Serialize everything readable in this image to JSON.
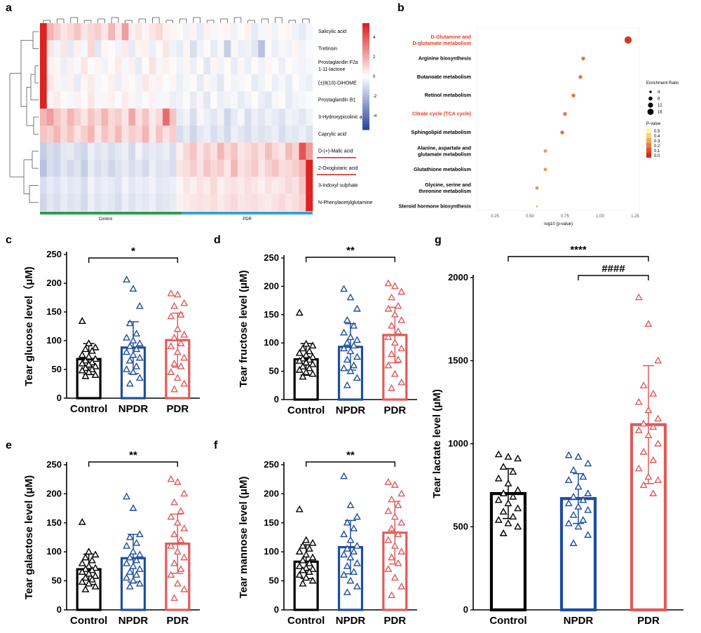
{
  "panel_labels": [
    "a",
    "b",
    "c",
    "d",
    "e",
    "f",
    "g"
  ],
  "colors": {
    "control": "#000000",
    "npdr": "#1f4e9c",
    "pdr": "#e05a5a",
    "hm_high": "#dd2222",
    "hm_low": "#2a48a0",
    "bar_control_group": "#2e9e4a",
    "bar_pdr_group": "#3aa0d8"
  },
  "heatmap": {
    "rows": [
      "Salicylic acid",
      "Tretinoin",
      "Prostaglandin F2a\n1-11-lactone",
      "(±)9(10)-DiHOME",
      "Prostaglandin B1",
      "3-Hydroxypicolinic acid",
      "Caprylic acid",
      "D-(+)-Malic acid",
      "2-Oxoglutaric acid",
      "3-Indoxyl sulphate",
      "N-Phenylacetylglutamine"
    ],
    "underlined_rows": [
      7,
      8
    ],
    "group_labels": [
      "Control",
      "PDR"
    ],
    "scale_ticks": [
      "4",
      "2",
      "0",
      "-2",
      "-4"
    ],
    "n_cols": 40
  },
  "chart_data": [
    {
      "type": "heatmap",
      "panel": "a",
      "rows": [
        "Salicylic acid",
        "Tretinoin",
        "Prostaglandin F2a 1-11-lactone",
        "(±)9(10)-DiHOME",
        "Prostaglandin B1",
        "3-Hydroxypicolinic acid",
        "Caprylic acid",
        "D-(+)-Malic acid",
        "2-Oxoglutaric acid",
        "3-Indoxyl sulphate",
        "N-Phenylacetylglutamine"
      ],
      "groups": [
        "Control",
        "PDR"
      ],
      "color_range": [
        -4,
        4
      ],
      "values": [
        [
          5,
          1.5,
          1,
          0.5,
          0.8,
          1.2,
          0.5,
          0.8,
          1,
          0.5,
          1.5,
          0.5,
          2,
          0.3,
          0.5,
          0.2,
          0.5,
          0.8,
          0.3,
          0.2,
          0.1,
          -0.3,
          0.2,
          -0.5,
          0.3,
          -0.2,
          0.1,
          0.2,
          -0.3,
          0.1,
          0.3,
          -0.5,
          -0.2,
          0.2,
          -0.3,
          0.1,
          0.2,
          -0.3,
          -0.5,
          -0.2
        ],
        [
          4.5,
          0.5,
          -0.3,
          0.5,
          -0.5,
          0.3,
          -0.2,
          0.8,
          -0.6,
          0.2,
          0.1,
          -0.3,
          0.4,
          -0.5,
          0.2,
          0.3,
          -0.4,
          0.1,
          0.5,
          -0.3,
          -0.5,
          0.2,
          -0.8,
          -0.3,
          0.1,
          -0.5,
          -0.2,
          -1.2,
          0.2,
          -0.4,
          -0.3,
          -0.6,
          -1.5,
          0.1,
          -0.4,
          -0.2,
          -0.3,
          0.2,
          -0.3,
          -0.1
        ],
        [
          4.5,
          0.3,
          0.2,
          -0.4,
          0.3,
          -0.2,
          0.5,
          -0.1,
          0.2,
          -0.3,
          0.1,
          0.4,
          -0.2,
          0.3,
          -0.5,
          0.1,
          0.6,
          -0.2,
          0.3,
          0.1,
          -0.3,
          0.2,
          -0.4,
          0.1,
          -0.6,
          0.2,
          -0.3,
          0.1,
          -0.5,
          0.2,
          -0.4,
          0.1,
          -0.3,
          0.2,
          -0.1,
          -0.4,
          0.1,
          -0.2,
          -0.3,
          -0.2
        ],
        [
          5,
          0.5,
          0.2,
          -0.3,
          0.3,
          -0.5,
          0.2,
          0.4,
          -0.2,
          0.1,
          0.3,
          -0.4,
          0.2,
          0.1,
          -0.3,
          0.5,
          0.2,
          0.3,
          -0.1,
          0.2,
          -0.4,
          -0.2,
          0.1,
          -0.5,
          0.2,
          -0.3,
          -0.6,
          0.1,
          -0.3,
          -0.2,
          0.1,
          -0.5,
          -0.3,
          0.1,
          -0.4,
          -0.2,
          -0.5,
          0.1,
          -0.3,
          -0.4
        ],
        [
          4.8,
          0.2,
          0.4,
          0.1,
          -0.2,
          0.3,
          0.1,
          0.5,
          -0.2,
          0.2,
          0.3,
          -0.1,
          0.4,
          0.2,
          -0.3,
          0.1,
          0.3,
          -0.2,
          0.2,
          -0.4,
          -0.3,
          0.1,
          -0.5,
          -0.2,
          -0.6,
          0.1,
          -0.4,
          -0.3,
          -0.2,
          -0.5,
          -0.3,
          0.1,
          -0.4,
          -0.6,
          -0.2,
          0.1,
          -0.5,
          -0.3,
          -0.2,
          -0.1
        ],
        [
          1.5,
          2,
          1.2,
          0.8,
          1.5,
          1,
          0.5,
          1.2,
          0.8,
          1.5,
          0.8,
          1,
          0.5,
          1.8,
          0.6,
          1.2,
          0.4,
          0.8,
          3,
          1.2,
          -0.5,
          -0.3,
          -0.8,
          0.2,
          -0.4,
          -0.6,
          -0.3,
          -1,
          -0.5,
          -0.2,
          -0.8,
          -0.4,
          -0.6,
          -0.3,
          -0.5,
          -0.7,
          -0.3,
          -0.4,
          -0.6,
          -0.3
        ],
        [
          1.2,
          1,
          1.5,
          0.8,
          1.2,
          0.6,
          1,
          1.5,
          0.5,
          1.2,
          0.8,
          1.4,
          0.6,
          1,
          0.8,
          1.5,
          0.4,
          1.2,
          0.6,
          1,
          -0.8,
          -0.5,
          -1,
          -0.6,
          -0.4,
          -0.8,
          -0.5,
          -0.9,
          -0.4,
          -0.6,
          -0.8,
          -0.5,
          -0.7,
          -0.6,
          -0.4,
          -0.8,
          -0.5,
          -0.6,
          -0.4,
          -0.7
        ],
        [
          -1.2,
          -0.8,
          -1,
          -0.6,
          -0.5,
          -0.8,
          -1,
          -0.4,
          -0.7,
          -0.5,
          -0.8,
          -0.6,
          -0.4,
          -0.9,
          -0.3,
          -0.7,
          -0.5,
          -0.6,
          -0.4,
          -0.8,
          0.3,
          0.8,
          1.2,
          0.5,
          1,
          0.6,
          1.5,
          0.8,
          1.2,
          0.5,
          0.7,
          1,
          0.6,
          1.3,
          0.8,
          0.5,
          1.4,
          0.9,
          3.5,
          2
        ],
        [
          -1.5,
          -0.8,
          -1,
          -0.6,
          -0.9,
          -0.7,
          -1.2,
          -0.5,
          -0.8,
          -0.6,
          -1,
          -0.7,
          -0.5,
          -0.8,
          -0.6,
          -0.9,
          -0.4,
          -0.7,
          -0.6,
          -0.8,
          0.5,
          0.7,
          1,
          0.6,
          1.2,
          0.8,
          1,
          0.5,
          1.5,
          0.6,
          0.8,
          1.1,
          0.5,
          0.9,
          1.2,
          0.7,
          0.8,
          1,
          1.5,
          5
        ],
        [
          -0.8,
          -0.5,
          -0.7,
          -0.4,
          -0.6,
          -0.5,
          -0.8,
          -0.3,
          -0.6,
          -0.4,
          -0.5,
          -0.7,
          -0.3,
          -0.6,
          -0.4,
          -0.5,
          -0.3,
          -0.6,
          -0.5,
          -0.4,
          0.2,
          0.5,
          0.3,
          0.6,
          0.4,
          0.8,
          0.3,
          0.5,
          0.6,
          0.4,
          0.7,
          0.5,
          0.3,
          0.6,
          0.4,
          0.5,
          0.8,
          0.6,
          1.2,
          5
        ],
        [
          -1,
          -0.6,
          -0.8,
          -0.5,
          -0.7,
          -0.6,
          -0.9,
          -0.4,
          -0.7,
          -0.5,
          -0.6,
          -0.8,
          -0.4,
          -0.7,
          -0.5,
          -0.6,
          -0.4,
          -0.7,
          -0.6,
          -0.5,
          0.3,
          0.4,
          0.5,
          0.6,
          0.5,
          0.7,
          0.4,
          0.6,
          0.8,
          0.5,
          0.6,
          0.7,
          0.5,
          0.4,
          0.6,
          0.8,
          0.5,
          0.7,
          1,
          5
        ]
      ]
    },
    {
      "type": "scatter",
      "panel": "b",
      "categories": [
        "D-Glutamine and\nD-glutamate metabolism",
        "Arginine biosynthesis",
        "Butanoate metabolism",
        "Retinol metabolism",
        "Citrate cycle (TCA cycle)",
        "Sphingolipid metabolism",
        "Alanine, aspartate and\nglutamate metabolism",
        "Glutathione metabolism",
        "Glycine, serine and\nthreonine metabolism",
        "Steroid hormone biosynthesis"
      ],
      "highlighted": [
        0,
        4
      ],
      "neg_log10_p": [
        1.2,
        0.88,
        0.86,
        0.81,
        0.75,
        0.73,
        0.61,
        0.61,
        0.55,
        0.55
      ],
      "enrichment_ratio": [
        16,
        5,
        5,
        5,
        5,
        5,
        4,
        4,
        4,
        0
      ],
      "xlabel": "-log10 (p-value)",
      "xticks": [
        "0.25",
        "0.50",
        "0.75",
        "1.00",
        "1.25"
      ],
      "xlim": [
        0.12,
        1.28
      ],
      "size_legend_title": "Enrichment Ratio",
      "size_legend": [
        "4",
        "8",
        "12",
        "16"
      ],
      "color_legend_title": "P-value",
      "color_legend": [
        "0.5",
        "0.4",
        "0.3",
        "0.2",
        "0.1",
        "0.0"
      ]
    },
    {
      "type": "bar",
      "panel": "c",
      "categories": [
        "Control",
        "NPDR",
        "PDR"
      ],
      "means": [
        68,
        88,
        101
      ],
      "sd": [
        27,
        45,
        47
      ],
      "points": [
        [
          134,
          95,
          88,
          85,
          82,
          75,
          72,
          68,
          65,
          62,
          60,
          58,
          55,
          52,
          50,
          48,
          45,
          40,
          38
        ],
        [
          206,
          190,
          160,
          130,
          112,
          105,
          100,
          95,
          90,
          85,
          80,
          75,
          70,
          65,
          55,
          50,
          45,
          35,
          25
        ],
        [
          182,
          180,
          165,
          160,
          145,
          142,
          120,
          110,
          105,
          95,
          90,
          80,
          70,
          60,
          55,
          45,
          35,
          25,
          15
        ]
      ],
      "ylabel": "Tear glucose level（μM)",
      "ylim": [
        0,
        250
      ],
      "yticks": [
        0,
        50,
        100,
        150,
        200,
        250
      ],
      "significance": [
        {
          "from": "Control",
          "to": "PDR",
          "text": "*"
        }
      ]
    },
    {
      "type": "bar",
      "panel": "d",
      "categories": [
        "Control",
        "NPDR",
        "PDR"
      ],
      "means": [
        71,
        93,
        114
      ],
      "sd": [
        28,
        41,
        49
      ],
      "points": [
        [
          153,
          98,
          95,
          90,
          85,
          82,
          78,
          75,
          72,
          70,
          68,
          65,
          62,
          58,
          55,
          52,
          48,
          45,
          40
        ],
        [
          195,
          180,
          160,
          140,
          130,
          118,
          110,
          105,
          100,
          95,
          90,
          85,
          75,
          70,
          60,
          55,
          50,
          38,
          25
        ],
        [
          205,
          200,
          190,
          180,
          165,
          160,
          150,
          140,
          130,
          120,
          110,
          100,
          90,
          80,
          70,
          60,
          45,
          30,
          20
        ]
      ],
      "ylabel": "Tear fructose level (μM)",
      "ylim": [
        0,
        250
      ],
      "yticks": [
        0,
        50,
        100,
        150,
        200,
        250
      ],
      "significance": [
        {
          "from": "Control",
          "to": "PDR",
          "text": "**"
        }
      ]
    },
    {
      "type": "bar",
      "panel": "e",
      "categories": [
        "Control",
        "NPDR",
        "PDR"
      ],
      "means": [
        70,
        89,
        114
      ],
      "sd": [
        26,
        41,
        51
      ],
      "points": [
        [
          151,
          100,
          95,
          90,
          85,
          80,
          75,
          72,
          70,
          68,
          65,
          62,
          58,
          55,
          52,
          48,
          45,
          40,
          35
        ],
        [
          195,
          175,
          130,
          125,
          115,
          110,
          100,
          95,
          90,
          85,
          80,
          75,
          70,
          65,
          60,
          55,
          50,
          45,
          40
        ],
        [
          225,
          220,
          200,
          185,
          170,
          160,
          150,
          140,
          130,
          120,
          110,
          100,
          90,
          80,
          70,
          60,
          45,
          35,
          20
        ]
      ],
      "ylabel": "Tear galactose level (μM)",
      "ylim": [
        0,
        250
      ],
      "yticks": [
        0,
        50,
        100,
        150,
        200,
        250
      ],
      "significance": [
        {
          "from": "Control",
          "to": "PDR",
          "text": "**"
        }
      ]
    },
    {
      "type": "bar",
      "panel": "f",
      "categories": [
        "Control",
        "NPDR",
        "PDR"
      ],
      "means": [
        83,
        108,
        133
      ],
      "sd": [
        29,
        46,
        54
      ],
      "points": [
        [
          173,
          120,
          115,
          110,
          105,
          100,
          95,
          90,
          85,
          80,
          75,
          72,
          70,
          68,
          65,
          60,
          55,
          50,
          45
        ],
        [
          230,
          180,
          160,
          150,
          140,
          130,
          120,
          110,
          105,
          100,
          95,
          90,
          80,
          75,
          65,
          60,
          50,
          40,
          30
        ],
        [
          220,
          215,
          200,
          190,
          180,
          170,
          160,
          150,
          140,
          130,
          120,
          110,
          100,
          90,
          80,
          70,
          55,
          40,
          25
        ]
      ],
      "ylabel": "Tear mannose level (μM)",
      "ylim": [
        0,
        250
      ],
      "yticks": [
        0,
        50,
        100,
        150,
        200,
        250
      ],
      "significance": [
        {
          "from": "Control",
          "to": "PDR",
          "text": "**"
        }
      ]
    },
    {
      "type": "bar",
      "panel": "g",
      "categories": [
        "Control",
        "NPDR",
        "PDR"
      ],
      "means": [
        700,
        670,
        1115
      ],
      "sd": [
        150,
        150,
        355
      ],
      "points": [
        [
          935,
          920,
          910,
          860,
          830,
          790,
          760,
          720,
          700,
          680,
          660,
          640,
          610,
          590,
          560,
          540,
          520,
          500,
          460
        ],
        [
          930,
          920,
          880,
          840,
          800,
          780,
          740,
          700,
          680,
          660,
          640,
          620,
          600,
          570,
          540,
          520,
          500,
          450,
          400
        ],
        [
          1880,
          1720,
          1500,
          1350,
          1300,
          1250,
          1200,
          1150,
          1120,
          1100,
          1080,
          1050,
          1000,
          950,
          900,
          850,
          800,
          780,
          750,
          700
        ]
      ],
      "ylabel": "Tear lactate level (μM)",
      "ylim": [
        0,
        2000
      ],
      "yticks": [
        0,
        500,
        1000,
        1500,
        2000
      ],
      "significance": [
        {
          "from": "Control",
          "to": "PDR",
          "text": "****"
        },
        {
          "from": "NPDR",
          "to": "PDR",
          "text": "####"
        }
      ]
    }
  ]
}
